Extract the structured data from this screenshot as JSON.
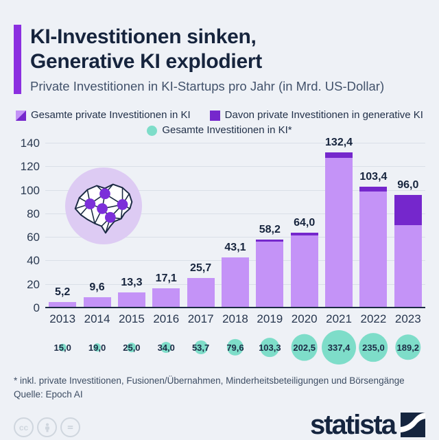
{
  "header": {
    "title_line1": "KI-Investitionen sinken,",
    "title_line2": "Generative KI explodiert",
    "subtitle": "Private Investitionen in KI-Startups pro Jahr (in Mrd. US-Dollar)"
  },
  "legend": {
    "total_private": "Gesamte private Investitionen in KI",
    "generative": "Davon private Investitionen in generative KI",
    "total_all": "Gesamte Investitionen in KI*"
  },
  "chart_data": {
    "type": "bar",
    "title": "KI-Investitionen sinken, Generative KI explodiert",
    "subtitle": "Private Investitionen in KI-Startups pro Jahr (in Mrd. US-Dollar)",
    "categories": [
      "2013",
      "2014",
      "2015",
      "2016",
      "2017",
      "2018",
      "2019",
      "2020",
      "2021",
      "2022",
      "2023"
    ],
    "ylim": [
      0,
      140
    ],
    "yticks": [
      0,
      20,
      40,
      60,
      80,
      100,
      120,
      140
    ],
    "grid": true,
    "legend_position": "top",
    "series": [
      {
        "name": "Gesamte private Investitionen in KI",
        "values": [
          5.2,
          9.6,
          13.3,
          17.1,
          25.7,
          43.1,
          58.2,
          64.0,
          132.4,
          103.4,
          96.0
        ],
        "labels": [
          "5,2",
          "9,6",
          "13,3",
          "17,1",
          "25,7",
          "43,1",
          "58,2",
          "64,0",
          "132,4",
          "103,4",
          "96,0"
        ]
      },
      {
        "name": "Davon private Investitionen in generative KI",
        "estimated_from_pixels": true,
        "values": [
          0,
          0,
          0,
          0,
          0,
          0,
          1.5,
          2.3,
          4.5,
          4.5,
          25.2
        ]
      },
      {
        "name": "Gesamte Investitionen in KI*",
        "values": [
          15.0,
          19.0,
          25.0,
          34.0,
          53.7,
          79.6,
          103.3,
          202.5,
          337.4,
          235.0,
          189.2
        ],
        "labels": [
          "15,0",
          "19,0",
          "25,0",
          "34,0",
          "53,7",
          "79,6",
          "103,3",
          "202,5",
          "337,4",
          "235,0",
          "189,2"
        ]
      }
    ]
  },
  "footnotes": {
    "asterisk": "* inkl. private Investitionen, Fusionen/Übernahmen, Minderheitsbeteiligungen und Börsengänge",
    "source": "Quelle: Epoch AI"
  },
  "footer": {
    "brand": "statista",
    "cc_glyph": "cc"
  },
  "colors": {
    "background": "#eef1f6",
    "accent_bar": "#8b2fe0",
    "bar_light": "#c493f7",
    "bar_dark": "#7527cc",
    "teal_circle": "#7eddc9",
    "text_navy": "#1b2a43",
    "gridline": "#d9dfe7"
  }
}
